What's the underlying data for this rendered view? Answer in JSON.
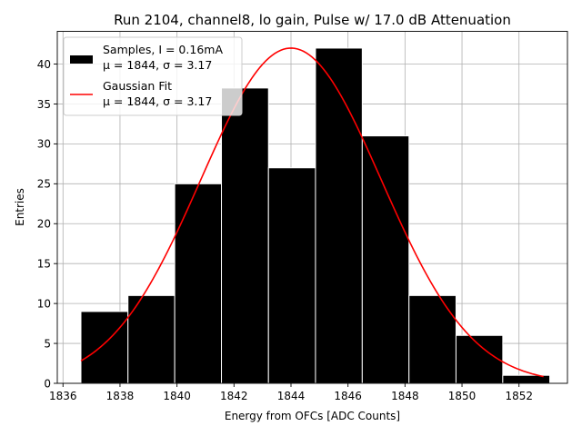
{
  "chart_data": {
    "type": "bar",
    "title": "Run 2104, channel8, lo gain, Pulse w/ 17.0 dB Attenuation",
    "xlabel": "Energy from OFCs [ADC Counts]",
    "ylabel": "Entries",
    "xlim": [
      1835.8,
      1853.7
    ],
    "ylim": [
      0,
      44.1
    ],
    "xticks": [
      1836,
      1838,
      1840,
      1842,
      1844,
      1846,
      1848,
      1850,
      1852
    ],
    "yticks": [
      0,
      5,
      10,
      15,
      20,
      25,
      30,
      35,
      40
    ],
    "grid": true,
    "legend_position": "top-left",
    "bins": [
      {
        "x0": 1836.63,
        "x1": 1838.28,
        "value": 9
      },
      {
        "x0": 1838.28,
        "x1": 1839.92,
        "value": 11
      },
      {
        "x0": 1839.92,
        "x1": 1841.56,
        "value": 25
      },
      {
        "x0": 1841.56,
        "x1": 1843.21,
        "value": 37
      },
      {
        "x0": 1843.21,
        "x1": 1844.86,
        "value": 27
      },
      {
        "x0": 1844.86,
        "x1": 1846.5,
        "value": 42
      },
      {
        "x0": 1846.5,
        "x1": 1848.14,
        "value": 31
      },
      {
        "x0": 1848.14,
        "x1": 1849.79,
        "value": 11
      },
      {
        "x0": 1849.79,
        "x1": 1851.43,
        "value": 6
      },
      {
        "x0": 1851.43,
        "x1": 1853.08,
        "value": 1
      }
    ],
    "fit": {
      "type": "gaussian",
      "amplitude": 42.0,
      "mu": 1844.0,
      "sigma": 3.17,
      "x_range": [
        1836.63,
        1852.86
      ]
    },
    "series": [
      {
        "name": "Samples, I = 0.16mA",
        "stats": "μ = 1844, σ = 3.17",
        "color": "#000000",
        "kind": "histogram"
      },
      {
        "name": "Gaussian Fit",
        "stats": "μ = 1844, σ = 3.17",
        "color": "#ff0000",
        "kind": "line"
      }
    ]
  }
}
